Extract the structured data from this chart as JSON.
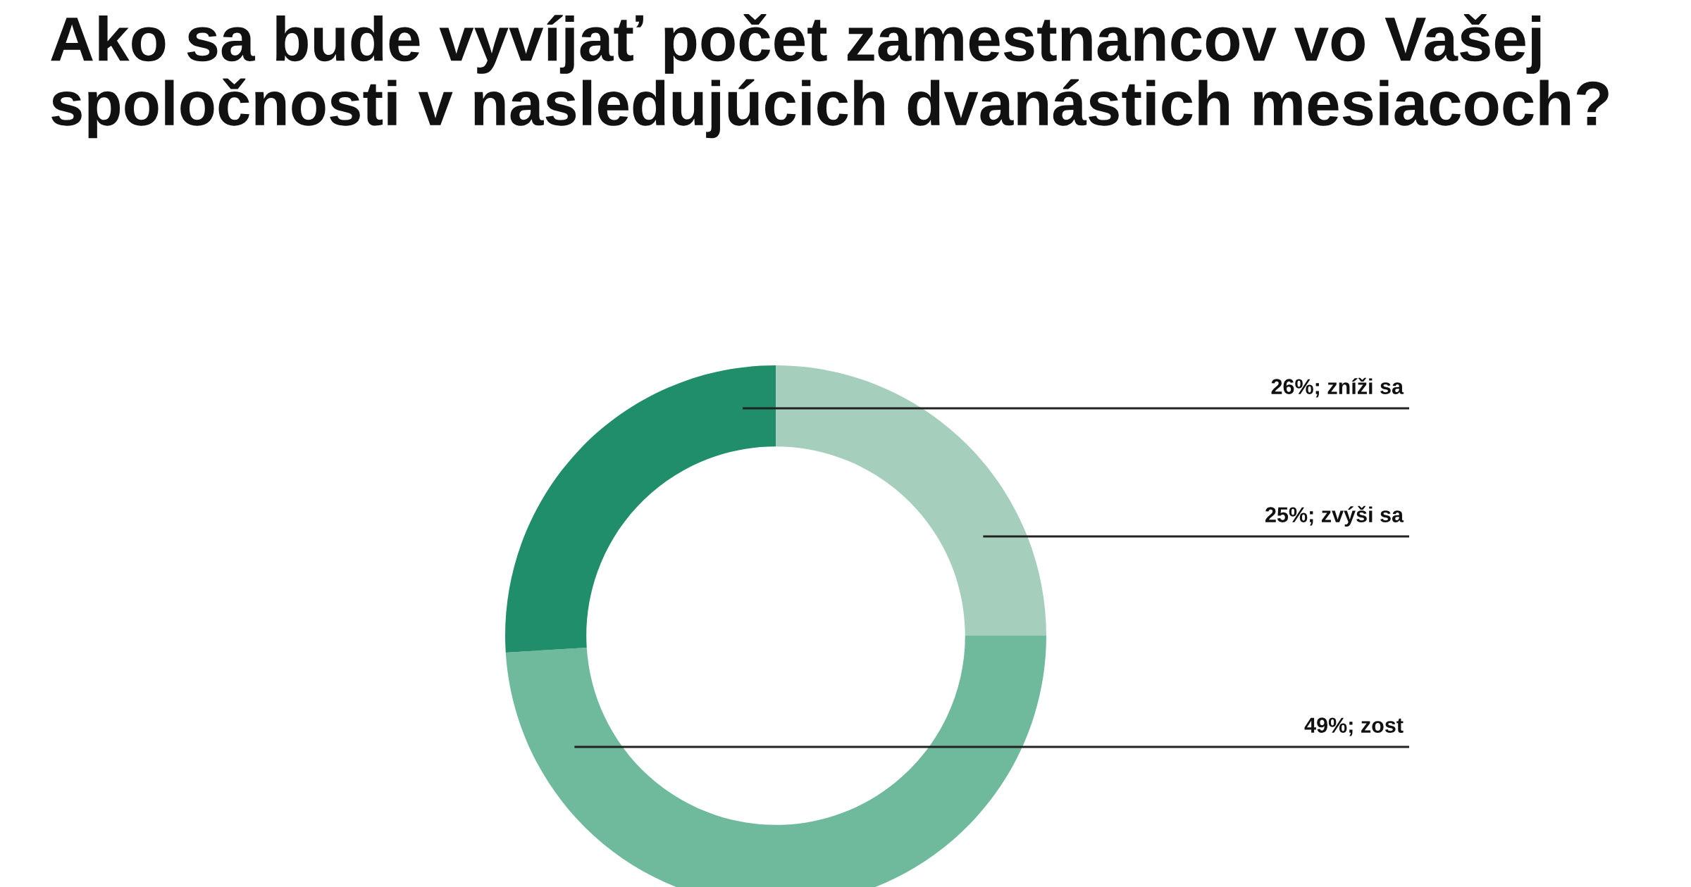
{
  "chart_data": {
    "type": "donut",
    "title": "Ako sa bude vyvíjať počet zamestnancov vo Vašej spoločnosti v nasledujúcich dvanástich mesiacoch?",
    "categories": [
      "zvýši sa",
      "zost",
      "zníži sa"
    ],
    "values": [
      25,
      49,
      26
    ],
    "value_labels": [
      "25%",
      "49%",
      "26%"
    ],
    "colors": [
      "#a5cfbc",
      "#6fba9c",
      "#208e6a"
    ],
    "legend": false
  }
}
